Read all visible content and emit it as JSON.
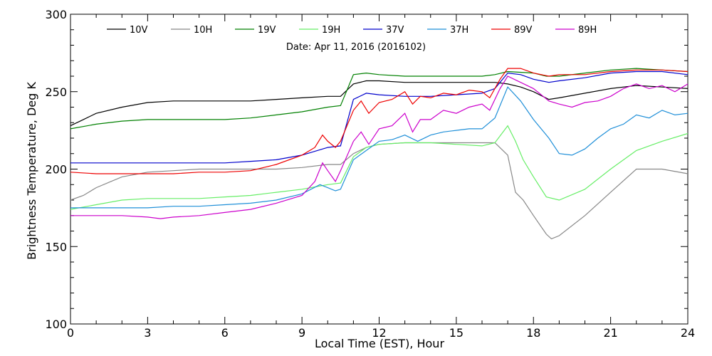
{
  "chart_data": {
    "type": "line",
    "subtitle": "Date: Apr 11, 2016 (2016102)",
    "xlabel": "Local Time (EST), Hour",
    "ylabel": "Brightness Temperature, Deg K",
    "xlim": [
      0,
      24
    ],
    "ylim": [
      100,
      300
    ],
    "xticks": [
      0,
      3,
      6,
      9,
      12,
      15,
      18,
      21,
      24
    ],
    "yticks": [
      100,
      150,
      200,
      250,
      300
    ],
    "grid": false,
    "legend_position": "top",
    "series": [
      {
        "name": "10V",
        "color": "#000000",
        "points": [
          [
            0,
            228
          ],
          [
            0.5,
            232
          ],
          [
            1,
            236
          ],
          [
            2,
            240
          ],
          [
            3,
            243
          ],
          [
            4,
            244
          ],
          [
            5,
            244
          ],
          [
            6,
            244
          ],
          [
            7,
            244
          ],
          [
            8,
            245
          ],
          [
            9,
            246
          ],
          [
            10,
            247
          ],
          [
            10.5,
            247
          ],
          [
            11,
            255
          ],
          [
            11.5,
            257
          ],
          [
            12,
            257
          ],
          [
            13,
            256
          ],
          [
            14,
            256
          ],
          [
            15,
            256
          ],
          [
            16,
            256
          ],
          [
            16.5,
            256
          ],
          [
            17,
            255
          ],
          [
            17.5,
            253
          ],
          [
            18,
            250
          ],
          [
            18.6,
            245
          ],
          [
            19,
            246
          ],
          [
            20,
            249
          ],
          [
            21,
            252
          ],
          [
            22,
            254
          ],
          [
            23,
            253
          ],
          [
            24,
            252
          ]
        ]
      },
      {
        "name": "10H",
        "color": "#888888",
        "points": [
          [
            0,
            180
          ],
          [
            0.5,
            183
          ],
          [
            1,
            188
          ],
          [
            2,
            195
          ],
          [
            3,
            198
          ],
          [
            4,
            199
          ],
          [
            5,
            200
          ],
          [
            6,
            200
          ],
          [
            7,
            200
          ],
          [
            8,
            200
          ],
          [
            9,
            201
          ],
          [
            10,
            203
          ],
          [
            10.5,
            203
          ],
          [
            11,
            210
          ],
          [
            11.5,
            214
          ],
          [
            12,
            216
          ],
          [
            13,
            217
          ],
          [
            14,
            217
          ],
          [
            15,
            217
          ],
          [
            16,
            217
          ],
          [
            16.5,
            217
          ],
          [
            17,
            209
          ],
          [
            17.3,
            185
          ],
          [
            17.6,
            180
          ],
          [
            18,
            170
          ],
          [
            18.5,
            158
          ],
          [
            18.7,
            155
          ],
          [
            19,
            157
          ],
          [
            20,
            170
          ],
          [
            21,
            185
          ],
          [
            22,
            200
          ],
          [
            23,
            200
          ],
          [
            24,
            197
          ]
        ]
      },
      {
        "name": "19V",
        "color": "#008000",
        "points": [
          [
            0,
            226
          ],
          [
            1,
            229
          ],
          [
            2,
            231
          ],
          [
            3,
            232
          ],
          [
            4,
            232
          ],
          [
            5,
            232
          ],
          [
            6,
            232
          ],
          [
            7,
            233
          ],
          [
            8,
            235
          ],
          [
            9,
            237
          ],
          [
            10,
            240
          ],
          [
            10.5,
            241
          ],
          [
            11,
            261
          ],
          [
            11.5,
            262
          ],
          [
            12,
            261
          ],
          [
            13,
            260
          ],
          [
            14,
            260
          ],
          [
            15,
            260
          ],
          [
            16,
            260
          ],
          [
            16.5,
            261
          ],
          [
            17,
            263
          ],
          [
            18,
            262
          ],
          [
            18.5,
            260
          ],
          [
            19,
            260
          ],
          [
            20,
            262
          ],
          [
            21,
            264
          ],
          [
            22,
            265
          ],
          [
            23,
            264
          ],
          [
            24,
            263
          ]
        ]
      },
      {
        "name": "19H",
        "color": "#66ee66",
        "points": [
          [
            0,
            174
          ],
          [
            1,
            177
          ],
          [
            2,
            180
          ],
          [
            3,
            181
          ],
          [
            4,
            181
          ],
          [
            5,
            181
          ],
          [
            6,
            182
          ],
          [
            7,
            183
          ],
          [
            8,
            185
          ],
          [
            9,
            187
          ],
          [
            10,
            190
          ],
          [
            10.5,
            191
          ],
          [
            11,
            208
          ],
          [
            11.5,
            214
          ],
          [
            12,
            216
          ],
          [
            13,
            217
          ],
          [
            14,
            217
          ],
          [
            15,
            216
          ],
          [
            16,
            215
          ],
          [
            16.5,
            217
          ],
          [
            17,
            228
          ],
          [
            17.3,
            218
          ],
          [
            17.6,
            206
          ],
          [
            18,
            195
          ],
          [
            18.5,
            182
          ],
          [
            19,
            180
          ],
          [
            20,
            187
          ],
          [
            21,
            200
          ],
          [
            22,
            212
          ],
          [
            23,
            218
          ],
          [
            24,
            223
          ]
        ]
      },
      {
        "name": "37V",
        "color": "#0000cc",
        "points": [
          [
            0,
            204
          ],
          [
            1,
            204
          ],
          [
            2,
            204
          ],
          [
            3,
            204
          ],
          [
            4,
            204
          ],
          [
            5,
            204
          ],
          [
            6,
            204
          ],
          [
            7,
            205
          ],
          [
            8,
            206
          ],
          [
            9,
            209
          ],
          [
            10,
            214
          ],
          [
            10.5,
            215
          ],
          [
            11,
            245
          ],
          [
            11.5,
            249
          ],
          [
            12,
            248
          ],
          [
            13,
            247
          ],
          [
            14,
            247
          ],
          [
            15,
            248
          ],
          [
            16,
            249
          ],
          [
            16.5,
            252
          ],
          [
            17,
            262
          ],
          [
            17.5,
            261
          ],
          [
            18,
            258
          ],
          [
            18.6,
            256
          ],
          [
            19,
            257
          ],
          [
            20,
            259
          ],
          [
            21,
            262
          ],
          [
            22,
            263
          ],
          [
            23,
            263
          ],
          [
            24,
            261
          ]
        ]
      },
      {
        "name": "37H",
        "color": "#1f8fd8",
        "points": [
          [
            0,
            175
          ],
          [
            1,
            175
          ],
          [
            2,
            175
          ],
          [
            3,
            175
          ],
          [
            4,
            176
          ],
          [
            5,
            176
          ],
          [
            6,
            177
          ],
          [
            7,
            178
          ],
          [
            8,
            180
          ],
          [
            9,
            184
          ],
          [
            9.7,
            190
          ],
          [
            10,
            188
          ],
          [
            10.3,
            186
          ],
          [
            10.5,
            187
          ],
          [
            11,
            206
          ],
          [
            11.5,
            212
          ],
          [
            12,
            218
          ],
          [
            12.5,
            219
          ],
          [
            13,
            222
          ],
          [
            13.5,
            218
          ],
          [
            14,
            222
          ],
          [
            14.5,
            224
          ],
          [
            15,
            225
          ],
          [
            15.5,
            226
          ],
          [
            16,
            226
          ],
          [
            16.5,
            233
          ],
          [
            17,
            253
          ],
          [
            17.5,
            244
          ],
          [
            18,
            232
          ],
          [
            18.6,
            220
          ],
          [
            19,
            210
          ],
          [
            19.5,
            209
          ],
          [
            20,
            213
          ],
          [
            20.5,
            220
          ],
          [
            21,
            226
          ],
          [
            21.5,
            229
          ],
          [
            22,
            235
          ],
          [
            22.5,
            233
          ],
          [
            23,
            238
          ],
          [
            23.5,
            235
          ],
          [
            24,
            236
          ]
        ]
      },
      {
        "name": "89V",
        "color": "#ee0000",
        "points": [
          [
            0,
            198
          ],
          [
            1,
            197
          ],
          [
            2,
            197
          ],
          [
            3,
            197
          ],
          [
            4,
            197
          ],
          [
            5,
            198
          ],
          [
            6,
            198
          ],
          [
            7,
            199
          ],
          [
            8,
            203
          ],
          [
            9,
            209
          ],
          [
            9.5,
            214
          ],
          [
            9.8,
            222
          ],
          [
            10,
            218
          ],
          [
            10.3,
            214
          ],
          [
            10.5,
            218
          ],
          [
            11,
            238
          ],
          [
            11.3,
            244
          ],
          [
            11.6,
            236
          ],
          [
            12,
            243
          ],
          [
            12.5,
            245
          ],
          [
            13,
            250
          ],
          [
            13.3,
            242
          ],
          [
            13.6,
            247
          ],
          [
            14,
            246
          ],
          [
            14.5,
            249
          ],
          [
            15,
            248
          ],
          [
            15.5,
            251
          ],
          [
            16,
            250
          ],
          [
            16.3,
            246
          ],
          [
            16.7,
            258
          ],
          [
            17,
            265
          ],
          [
            17.5,
            265
          ],
          [
            18,
            262
          ],
          [
            18.6,
            260
          ],
          [
            19,
            261
          ],
          [
            20,
            261
          ],
          [
            21,
            263
          ],
          [
            22,
            264
          ],
          [
            23,
            264
          ],
          [
            24,
            263
          ]
        ]
      },
      {
        "name": "89H",
        "color": "#cc00cc",
        "points": [
          [
            0,
            170
          ],
          [
            1,
            170
          ],
          [
            2,
            170
          ],
          [
            3,
            169
          ],
          [
            3.5,
            168
          ],
          [
            4,
            169
          ],
          [
            5,
            170
          ],
          [
            6,
            172
          ],
          [
            7,
            174
          ],
          [
            8,
            178
          ],
          [
            9,
            183
          ],
          [
            9.5,
            192
          ],
          [
            9.8,
            204
          ],
          [
            10,
            199
          ],
          [
            10.3,
            192
          ],
          [
            10.5,
            199
          ],
          [
            11,
            218
          ],
          [
            11.3,
            224
          ],
          [
            11.6,
            216
          ],
          [
            12,
            226
          ],
          [
            12.5,
            228
          ],
          [
            13,
            236
          ],
          [
            13.3,
            224
          ],
          [
            13.6,
            232
          ],
          [
            14,
            232
          ],
          [
            14.5,
            238
          ],
          [
            15,
            236
          ],
          [
            15.5,
            240
          ],
          [
            16,
            242
          ],
          [
            16.3,
            238
          ],
          [
            16.7,
            252
          ],
          [
            17,
            260
          ],
          [
            17.5,
            256
          ],
          [
            18,
            252
          ],
          [
            18.6,
            244
          ],
          [
            19,
            242
          ],
          [
            19.5,
            240
          ],
          [
            20,
            243
          ],
          [
            20.5,
            244
          ],
          [
            21,
            247
          ],
          [
            21.5,
            252
          ],
          [
            22,
            255
          ],
          [
            22.5,
            252
          ],
          [
            23,
            254
          ],
          [
            23.5,
            250
          ],
          [
            24,
            255
          ]
        ]
      }
    ]
  }
}
